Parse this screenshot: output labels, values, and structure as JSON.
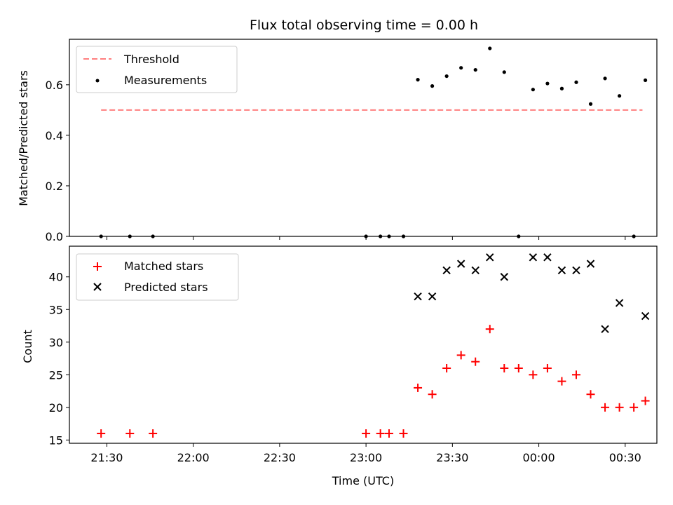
{
  "title": "Flux total observing time = 0.00 h",
  "top_panel": {
    "ylabel": "Matched/Predicted stars",
    "legend": {
      "threshold_label": "Threshold",
      "measurements_label": "Measurements"
    },
    "yticks": [
      "0.0",
      "0.2",
      "0.4",
      "0.6"
    ]
  },
  "bottom_panel": {
    "ylabel": "Count",
    "xlabel": "Time (UTC)",
    "legend": {
      "matched_label": "Matched stars",
      "predicted_label": "Predicted stars"
    },
    "yticks": [
      "15",
      "20",
      "25",
      "30",
      "35",
      "40"
    ],
    "xticks": [
      "21:30",
      "22:00",
      "22:30",
      "23:00",
      "23:30",
      "00:00",
      "00:30"
    ]
  },
  "colors": {
    "threshold": "#ff7f7f",
    "measurements": "#000000",
    "matched": "#ff0000",
    "predicted": "#000000"
  },
  "chart_data": [
    {
      "type": "scatter",
      "title": "Flux total observing time = 0.00 h",
      "xlabel": "",
      "ylabel": "Matched/Predicted stars",
      "x_unit": "time (UTC)",
      "xlim": [
        "21:17",
        "00:41"
      ],
      "ylim": [
        0.0,
        0.78
      ],
      "grid": false,
      "legend_position": "top-left",
      "threshold": {
        "name": "Threshold",
        "value": 0.5,
        "x_start": "21:28",
        "x_end": "00:36",
        "style": "dashed"
      },
      "series": [
        {
          "name": "Measurements",
          "x": [
            "21:28",
            "21:38",
            "21:46",
            "23:00",
            "23:05",
            "23:08",
            "23:13",
            "23:18",
            "23:23",
            "23:28",
            "23:33",
            "23:38",
            "23:43",
            "23:48",
            "23:53",
            "23:58",
            "00:03",
            "00:08",
            "00:13",
            "00:18",
            "00:23",
            "00:28",
            "00:33",
            "00:37"
          ],
          "y": [
            0.0,
            0.0,
            0.0,
            0.0,
            0.0,
            0.0,
            0.0,
            0.62,
            0.595,
            0.634,
            0.667,
            0.659,
            0.744,
            0.65,
            0.0,
            0.581,
            0.605,
            0.585,
            0.61,
            0.524,
            0.625,
            0.556,
            0.0,
            0.618
          ]
        }
      ]
    },
    {
      "type": "scatter",
      "title": "",
      "xlabel": "Time (UTC)",
      "ylabel": "Count",
      "xlim": [
        "21:17",
        "00:41"
      ],
      "ylim": [
        14.5,
        44.7
      ],
      "grid": false,
      "legend_position": "top-left",
      "series": [
        {
          "name": "Matched stars",
          "marker": "+",
          "x": [
            "21:28",
            "21:38",
            "21:46",
            "23:00",
            "23:05",
            "23:08",
            "23:13",
            "23:18",
            "23:23",
            "23:28",
            "23:33",
            "23:38",
            "23:43",
            "23:48",
            "23:53",
            "23:58",
            "00:03",
            "00:08",
            "00:13",
            "00:18",
            "00:23",
            "00:28",
            "00:33",
            "00:37"
          ],
          "y": [
            16,
            16,
            16,
            16,
            16,
            16,
            16,
            23,
            22,
            26,
            28,
            27,
            32,
            26,
            26,
            25,
            26,
            24,
            25,
            22,
            20,
            20,
            20,
            21
          ]
        },
        {
          "name": "Predicted stars",
          "marker": "x",
          "x": [
            "23:18",
            "23:23",
            "23:28",
            "23:33",
            "23:38",
            "23:43",
            "23:48",
            "23:58",
            "00:03",
            "00:08",
            "00:13",
            "00:18",
            "00:23",
            "00:28",
            "00:37"
          ],
          "y": [
            37,
            37,
            41,
            42,
            41,
            43,
            40,
            43,
            43,
            41,
            41,
            42,
            32,
            36,
            34
          ]
        }
      ]
    }
  ]
}
